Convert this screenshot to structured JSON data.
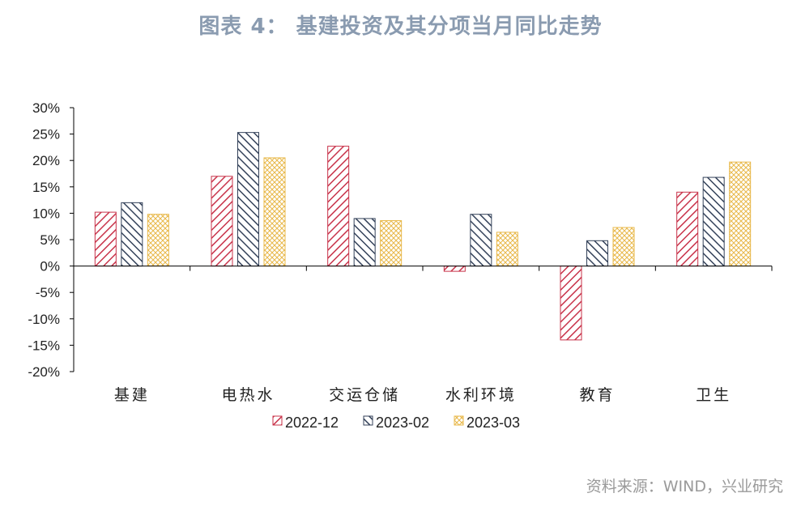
{
  "title": "图表 4：  基建投资及其分项当月同比走势",
  "source": "资料来源：WIND，兴业研究",
  "chart_data": {
    "type": "bar",
    "title": "图表 4：  基建投资及其分项当月同比走势",
    "categories": [
      "基建",
      "电热水",
      "交运仓储",
      "水利环境",
      "教育",
      "卫生"
    ],
    "series": [
      {
        "name": "2022-12",
        "values": [
          10.2,
          17.0,
          22.7,
          -1.0,
          -14.0,
          14.0
        ],
        "color": "#c8334a",
        "pattern": "diag-red"
      },
      {
        "name": "2023-02",
        "values": [
          12.0,
          25.3,
          9.0,
          9.8,
          4.8,
          16.8
        ],
        "color": "#34425a",
        "pattern": "diag-navy"
      },
      {
        "name": "2023-03",
        "values": [
          9.8,
          20.5,
          8.6,
          6.4,
          7.3,
          19.7
        ],
        "color": "#e8b84a",
        "pattern": "cross-gold"
      }
    ],
    "ylim": [
      -20,
      30
    ],
    "yticks": [
      30,
      25,
      20,
      15,
      10,
      5,
      0,
      -5,
      -10,
      -15,
      -20
    ],
    "ytick_labels": [
      "30%",
      "25%",
      "20%",
      "15%",
      "10%",
      "5%",
      "0%",
      "-5%",
      "-10%",
      "-15%",
      "-20%"
    ],
    "xlabel": "",
    "ylabel": "",
    "grid": false,
    "legend_position": "bottom"
  }
}
